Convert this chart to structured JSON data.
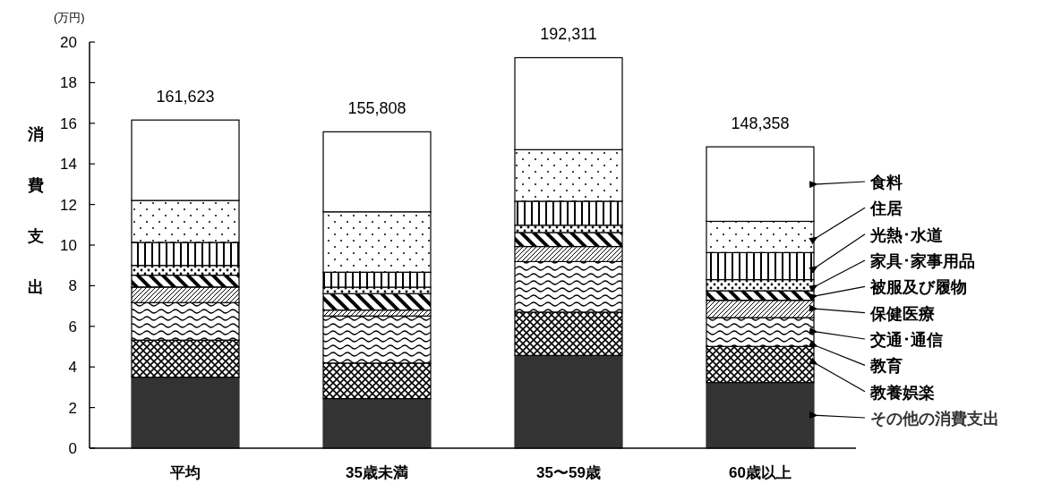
{
  "chart_data": {
    "type": "bar",
    "stacked": true,
    "ylabel": "消費支出",
    "annotations": [
      "(万円)",
      {
        "text": "161,623",
        "x": "平均",
        "y": 16.16
      },
      {
        "text": "155,808",
        "x": "35歳未満",
        "y": 15.58
      },
      {
        "text": "192,311",
        "x": "35〜59歳",
        "y": 19.23
      },
      {
        "text": "148,358",
        "x": "60歳以上",
        "y": 14.84
      }
    ],
    "categories": [
      "平均",
      "35歳未満",
      "35〜59歳",
      "60歳以上"
    ],
    "ylim": [
      0,
      20
    ],
    "yticks": [
      0,
      2,
      4,
      6,
      8,
      10,
      12,
      14,
      16,
      18,
      20
    ],
    "grid": false,
    "legend": "right",
    "series": [
      {
        "name": "その他の消費支出",
        "color": "#333333",
        "values": [
          3.49,
          2.44,
          4.57,
          3.23
        ]
      },
      {
        "name": "教養娯楽",
        "color": "#000000",
        "values": [
          1.83,
          1.75,
          2.13,
          1.78
        ]
      },
      {
        "name": "教育",
        "color": "#000000",
        "values": [
          0,
          0,
          0,
          0
        ]
      },
      {
        "name": "交通･通信",
        "color": "#000000",
        "values": [
          1.85,
          2.32,
          2.49,
          1.42
        ]
      },
      {
        "name": "保健医療",
        "color": "#000000",
        "values": [
          0.76,
          0.29,
          0.74,
          0.85
        ]
      },
      {
        "name": "被服及び履物",
        "color": "#000000",
        "values": [
          0.59,
          0.81,
          0.69,
          0.47
        ]
      },
      {
        "name": "家具･家事用品",
        "color": "#000000",
        "values": [
          0.48,
          0.32,
          0.36,
          0.55
        ]
      },
      {
        "name": "光熱･水道",
        "color": "#000000",
        "values": [
          1.13,
          0.73,
          1.18,
          1.33
        ]
      },
      {
        "name": "住居",
        "color": "#000000",
        "values": [
          2.07,
          2.98,
          2.54,
          1.54
        ]
      },
      {
        "name": "食料",
        "color": "#000000",
        "values": [
          3.96,
          3.94,
          4.53,
          3.67
        ]
      }
    ]
  }
}
